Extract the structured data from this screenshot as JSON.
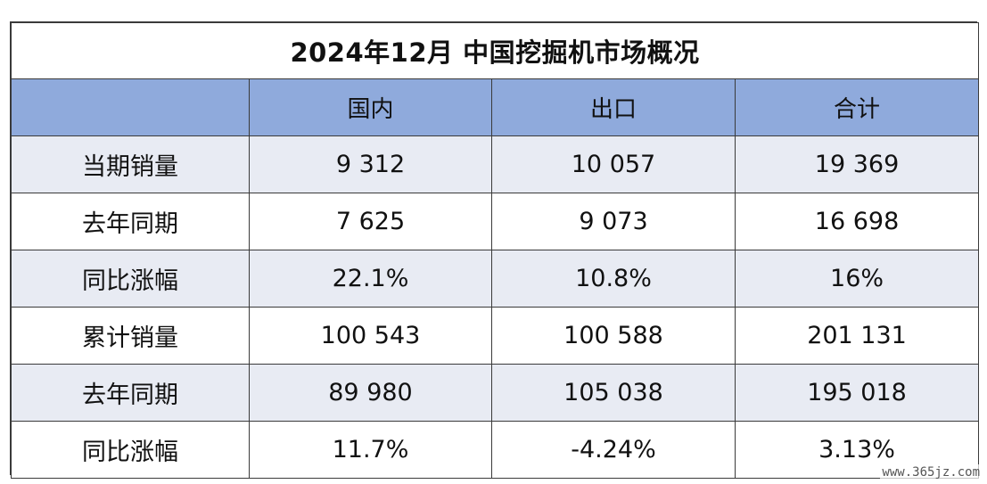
{
  "title": "2024年12月 中国挖掘机市场概况",
  "header": {
    "corner": "",
    "columns": [
      "国内",
      "出口",
      "合计"
    ]
  },
  "rows": [
    {
      "label": "当期销量",
      "values": [
        "9 312",
        "10 057",
        "19 369"
      ]
    },
    {
      "label": "去年同期",
      "values": [
        "7 625",
        "9 073",
        "16 698"
      ]
    },
    {
      "label": "同比涨幅",
      "values": [
        "22.1%",
        "10.8%",
        "16%"
      ]
    },
    {
      "label": "累计销量",
      "values": [
        "100 543",
        "100 588",
        "201 131"
      ]
    },
    {
      "label": "去年同期",
      "values": [
        "89 980",
        "105 038",
        "195 018"
      ]
    },
    {
      "label": "同比涨幅",
      "values": [
        "11.7%",
        "-4.24%",
        "3.13%"
      ]
    }
  ],
  "watermark": "www.365jz.com",
  "colors": {
    "header_bg": "#8faadc",
    "alt_row_bg": "#e8ebf3",
    "border": "#3a3a3a"
  }
}
